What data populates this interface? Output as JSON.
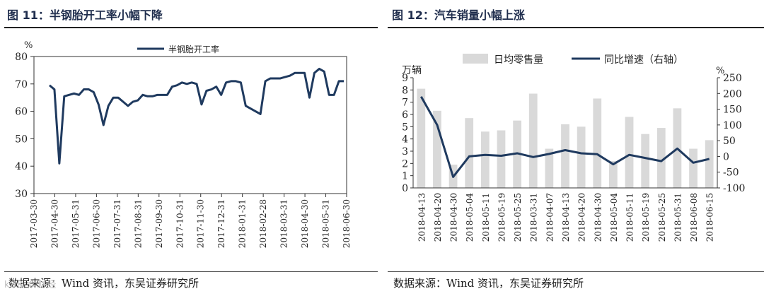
{
  "left": {
    "title": "图 11：半钢胎开工率小幅下降",
    "source": "数据来源：Wind 资讯，东吴证券研究所",
    "chart_data": {
      "type": "line",
      "title": "图 11：半钢胎开工率小幅下降",
      "ylabel": "%",
      "ylim": [
        30,
        80
      ],
      "yticks": [
        30,
        40,
        50,
        60,
        70,
        80
      ],
      "legend": "半钢胎开工率",
      "xticks": [
        "2017-03-30",
        "2017-04-30",
        "2017-05-31",
        "2017-06-30",
        "2017-07-31",
        "2017-08-31",
        "2017-09-30",
        "2017-10-31",
        "2017-11-30",
        "2017-12-31",
        "2018-01-31",
        "2018-02-28",
        "2018-03-31",
        "2018-04-30",
        "2018-05-31",
        "2018-06-30"
      ],
      "series": [
        {
          "name": "半钢胎开工率",
          "color": "#1f3a5f",
          "values": [
            69.5,
            68,
            41,
            65.5,
            66,
            66.5,
            66,
            68,
            68,
            67,
            62.5,
            55,
            62,
            65,
            65,
            63.5,
            62,
            63.5,
            64,
            66,
            65.5,
            65.5,
            66,
            66,
            66,
            69,
            69.5,
            70.5,
            70,
            70.5,
            70,
            62.5,
            67.5,
            68,
            69,
            66,
            70.5,
            71,
            71,
            70.5,
            62,
            61,
            60,
            59,
            71,
            72,
            72,
            72,
            72.5,
            73,
            74,
            74,
            74,
            65,
            74,
            75.5,
            74.5,
            66,
            66,
            71,
            71
          ]
        }
      ]
    }
  },
  "right": {
    "title": "图 12：汽车销量小幅上涨",
    "source": "数据来源：Wind 资讯，东吴证券研究所",
    "chart_data": {
      "type": "bar",
      "title": "图 12：汽车销量小幅上涨",
      "ylabel": "万辆",
      "y2label": "%",
      "ylim": [
        0,
        9
      ],
      "y2lim": [
        -100,
        250
      ],
      "yticks": [
        0,
        1,
        2,
        3,
        4,
        5,
        6,
        7,
        8,
        9
      ],
      "y2ticks": [
        -100,
        -50,
        0,
        50,
        100,
        150,
        200,
        250
      ],
      "categories": [
        "2018-04-13",
        "2018-04-20",
        "2018-04-30",
        "2018-05-04",
        "2018-05-11",
        "2018-05-19",
        "2018-05-25",
        "2018-03-31",
        "2018-04-07",
        "2018-04-13",
        "2018-04-20",
        "2018-04-30",
        "2018-05-04",
        "2018-05-11",
        "2018-05-19",
        "2018-05-25",
        "2018-05-31",
        "2018-06-08",
        "2018-06-15"
      ],
      "series": [
        {
          "name": "日均零售量",
          "axis": "left",
          "kind": "bar",
          "color": "#d9d9d9",
          "values": [
            8.1,
            6.3,
            1.9,
            5.7,
            4.6,
            4.7,
            5.5,
            7.7,
            3.2,
            5.2,
            5.0,
            7.3,
            2.2,
            5.8,
            4.4,
            4.9,
            6.5,
            3.2,
            3.9
          ]
        },
        {
          "name": "同比增速（右轴）",
          "axis": "right",
          "kind": "line",
          "color": "#1f3a5f",
          "values": [
            190,
            100,
            -65,
            0,
            5,
            2,
            10,
            -2,
            8,
            20,
            10,
            7,
            -25,
            5,
            -5,
            -15,
            25,
            -20,
            -8
          ]
        }
      ]
    }
  },
  "watermark": "k88 众财经"
}
